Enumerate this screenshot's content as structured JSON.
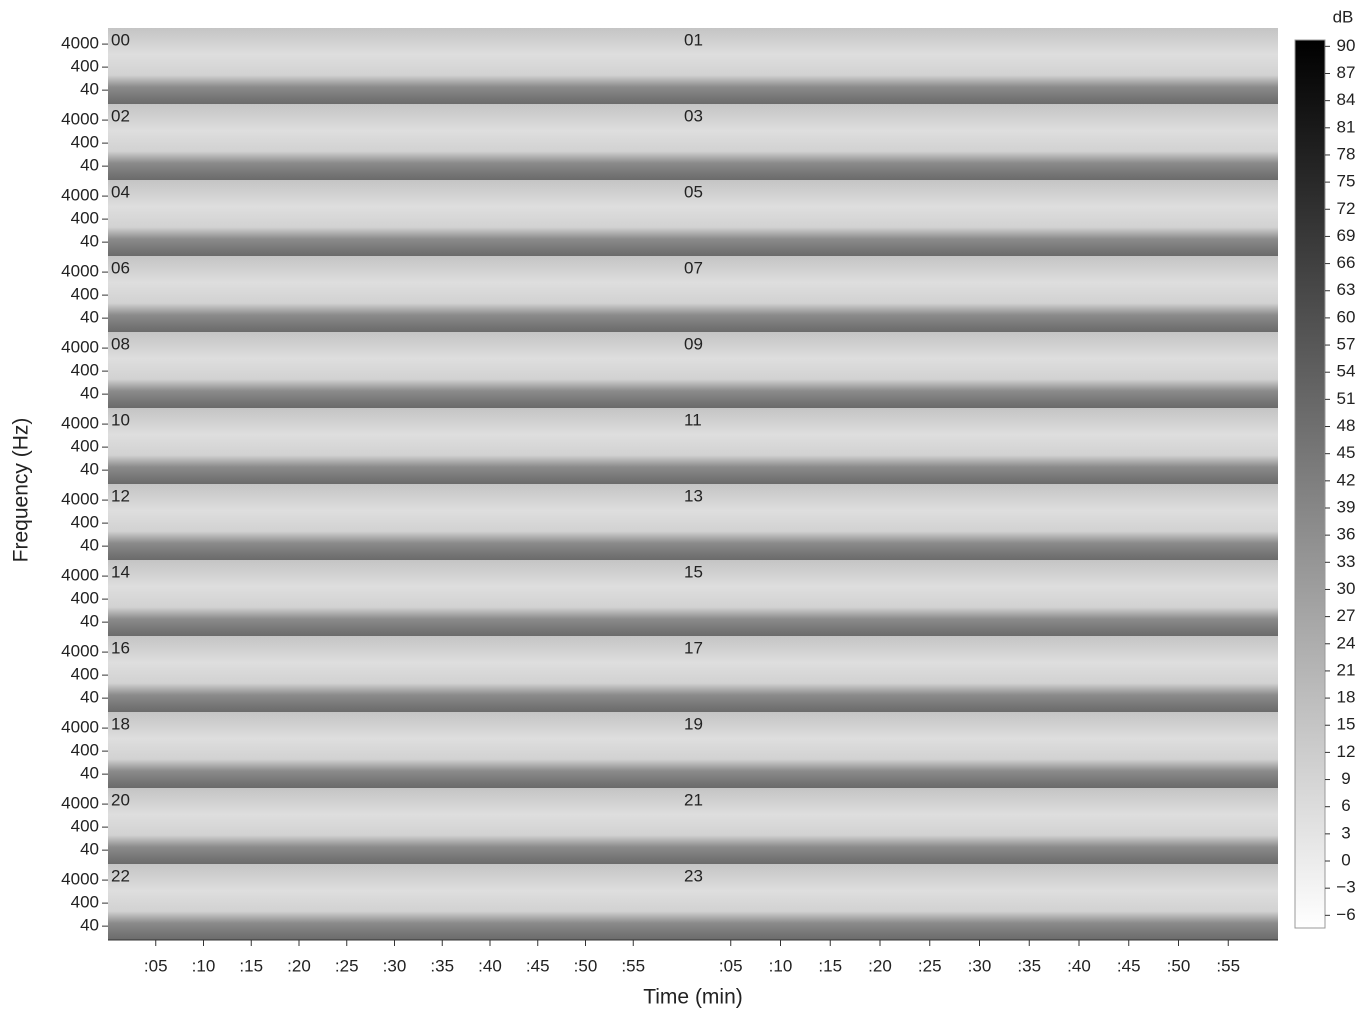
{
  "chart_data": {
    "type": "spectrogram",
    "x_label": "Time (min)",
    "y_label": "Frequency (Hz)",
    "panels": [
      "00",
      "01",
      "02",
      "03",
      "04",
      "05",
      "06",
      "07",
      "08",
      "09",
      "10",
      "11",
      "12",
      "13",
      "14",
      "15",
      "16",
      "17",
      "18",
      "19",
      "20",
      "21",
      "22",
      "23"
    ],
    "yscale": "log",
    "ylim": [
      10,
      20000
    ],
    "yticks": [
      40,
      400,
      4000
    ],
    "xlim": [
      0,
      60
    ],
    "xticks": [
      {
        "value": 5,
        "label": ":05"
      },
      {
        "value": 10,
        "label": ":10"
      },
      {
        "value": 15,
        "label": ":15"
      },
      {
        "value": 20,
        "label": ":20"
      },
      {
        "value": 25,
        "label": ":25"
      },
      {
        "value": 30,
        "label": ":30"
      },
      {
        "value": 35,
        "label": ":35"
      },
      {
        "value": 40,
        "label": ":40"
      },
      {
        "value": 45,
        "label": ":45"
      },
      {
        "value": 50,
        "label": ":50"
      },
      {
        "value": 55,
        "label": ":55"
      }
    ],
    "colorbar": {
      "label": "dB",
      "lim": [
        -7.4,
        90.7
      ],
      "ticks": [
        {
          "value": -6,
          "label": "−6"
        },
        {
          "value": -3,
          "label": "−3"
        },
        0,
        3,
        6,
        9,
        12,
        15,
        18,
        21,
        24,
        27,
        30,
        33,
        36,
        39,
        42,
        45,
        48,
        51,
        54,
        57,
        60,
        63,
        66,
        69,
        72,
        75,
        78,
        81,
        84,
        87,
        90
      ]
    }
  }
}
